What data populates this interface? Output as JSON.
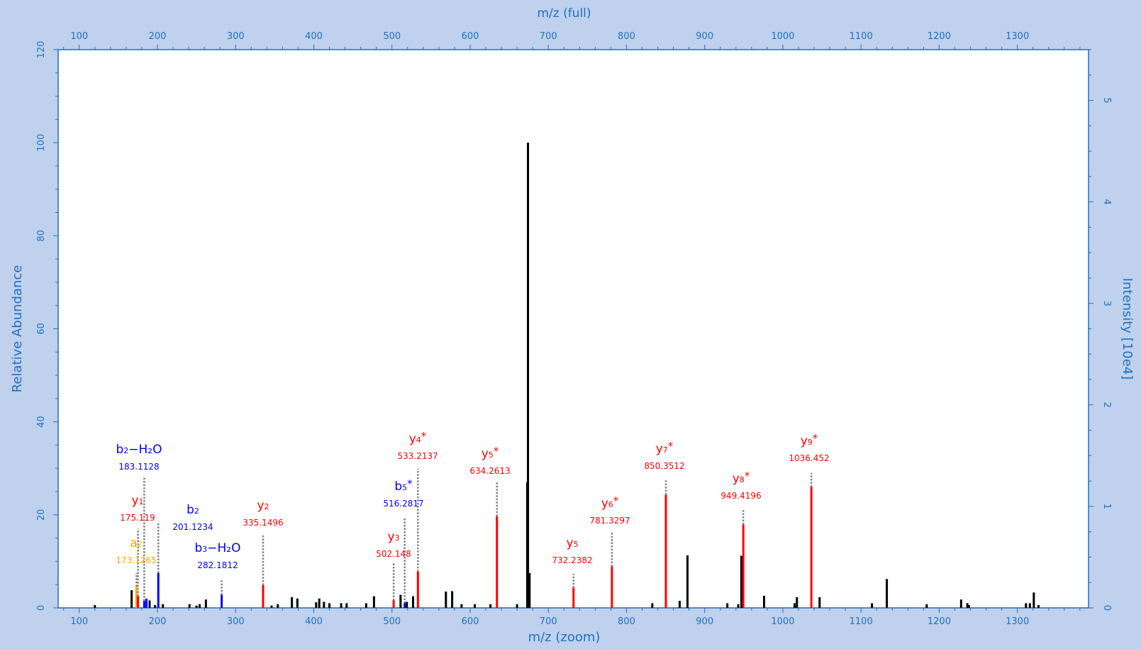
{
  "chart_data": {
    "type": "bar",
    "subtype": "mass-spectrum-stick",
    "title": "",
    "x_axis_top": {
      "label": "m/z (full)",
      "ticks": [
        100,
        200,
        300,
        400,
        500,
        600,
        700,
        800,
        900,
        1000,
        1100,
        1200,
        1300
      ]
    },
    "x_axis_bottom": {
      "label": "m/z (zoom)",
      "ticks": [
        100,
        200,
        300,
        400,
        500,
        600,
        700,
        800,
        900,
        1000,
        1100,
        1200,
        1300
      ]
    },
    "y_axis_left": {
      "label": "Relative Abundance",
      "ticks": [
        0,
        20,
        40,
        60,
        80,
        100,
        120
      ],
      "ylim": [
        0,
        120
      ]
    },
    "y_axis_right": {
      "label": "Intensity [10e4]",
      "ticks": [
        0,
        1,
        2,
        3,
        4,
        5
      ],
      "ylim": [
        0,
        5.5
      ]
    },
    "xlim": [
      73,
      1391
    ],
    "grid": false,
    "colors": {
      "background": "#bfd1ec",
      "plot_bg": "#ffffff",
      "axis": "#1f6fc4",
      "y_ion": "#ff0000",
      "b_ion": "#0000ff",
      "a_ion": "#ffa500",
      "unassigned": "#000000",
      "connector": "#808080"
    },
    "peaks": [
      {
        "mz": 120,
        "rel": 0.6,
        "type": "none"
      },
      {
        "mz": 167,
        "rel": 3.8,
        "type": "none"
      },
      {
        "mz": 173.1265,
        "rel": 4.6,
        "type": "a"
      },
      {
        "mz": 175.119,
        "rel": 2.5,
        "type": "y"
      },
      {
        "mz": 183.1128,
        "rel": 1.5,
        "type": "b"
      },
      {
        "mz": 186,
        "rel": 2.0,
        "type": "b"
      },
      {
        "mz": 190,
        "rel": 1.6,
        "type": "none"
      },
      {
        "mz": 197,
        "rel": 0.6,
        "type": "none"
      },
      {
        "mz": 201.1234,
        "rel": 7.5,
        "type": "b"
      },
      {
        "mz": 207,
        "rel": 0.8,
        "type": "none"
      },
      {
        "mz": 241,
        "rel": 0.8,
        "type": "none"
      },
      {
        "mz": 250,
        "rel": 0.5,
        "type": "none"
      },
      {
        "mz": 254,
        "rel": 0.8,
        "type": "none"
      },
      {
        "mz": 262,
        "rel": 1.8,
        "type": "none"
      },
      {
        "mz": 282.1812,
        "rel": 2.8,
        "type": "b"
      },
      {
        "mz": 335.1496,
        "rel": 4.9,
        "type": "y"
      },
      {
        "mz": 346,
        "rel": 0.5,
        "type": "none"
      },
      {
        "mz": 354,
        "rel": 0.8,
        "type": "none"
      },
      {
        "mz": 372,
        "rel": 2.3,
        "type": "none"
      },
      {
        "mz": 379,
        "rel": 2.0,
        "type": "none"
      },
      {
        "mz": 403,
        "rel": 1.2,
        "type": "none"
      },
      {
        "mz": 407,
        "rel": 2.0,
        "type": "none"
      },
      {
        "mz": 413,
        "rel": 1.3,
        "type": "none"
      },
      {
        "mz": 420,
        "rel": 1.0,
        "type": "none"
      },
      {
        "mz": 435,
        "rel": 1.0,
        "type": "none"
      },
      {
        "mz": 442,
        "rel": 1.0,
        "type": "none"
      },
      {
        "mz": 467,
        "rel": 1.0,
        "type": "none"
      },
      {
        "mz": 477,
        "rel": 2.5,
        "type": "none"
      },
      {
        "mz": 502.148,
        "rel": 1.6,
        "type": "y"
      },
      {
        "mz": 511,
        "rel": 2.8,
        "type": "none"
      },
      {
        "mz": 516.2817,
        "rel": 1.0,
        "type": "b"
      },
      {
        "mz": 519,
        "rel": 1.3,
        "type": "none"
      },
      {
        "mz": 527,
        "rel": 2.5,
        "type": "none"
      },
      {
        "mz": 533.2137,
        "rel": 7.8,
        "type": "y"
      },
      {
        "mz": 569,
        "rel": 3.5,
        "type": "none"
      },
      {
        "mz": 577,
        "rel": 3.6,
        "type": "none"
      },
      {
        "mz": 589,
        "rel": 0.8,
        "type": "none"
      },
      {
        "mz": 606,
        "rel": 0.8,
        "type": "none"
      },
      {
        "mz": 626,
        "rel": 0.8,
        "type": "none"
      },
      {
        "mz": 634.2613,
        "rel": 19.7,
        "type": "y"
      },
      {
        "mz": 660,
        "rel": 0.8,
        "type": "none"
      },
      {
        "mz": 673,
        "rel": 27,
        "type": "none"
      },
      {
        "mz": 674,
        "rel": 100,
        "type": "none"
      },
      {
        "mz": 676,
        "rel": 7.5,
        "type": "none"
      },
      {
        "mz": 732.2382,
        "rel": 4.3,
        "type": "y"
      },
      {
        "mz": 781.3297,
        "rel": 8.9,
        "type": "y"
      },
      {
        "mz": 833,
        "rel": 1.0,
        "type": "none"
      },
      {
        "mz": 850.3512,
        "rel": 24.3,
        "type": "y"
      },
      {
        "mz": 868,
        "rel": 1.5,
        "type": "none"
      },
      {
        "mz": 878,
        "rel": 11.3,
        "type": "none"
      },
      {
        "mz": 929,
        "rel": 1.0,
        "type": "none"
      },
      {
        "mz": 943,
        "rel": 0.8,
        "type": "none"
      },
      {
        "mz": 947,
        "rel": 11.2,
        "type": "none"
      },
      {
        "mz": 949.4196,
        "rel": 17.9,
        "type": "y"
      },
      {
        "mz": 976,
        "rel": 2.6,
        "type": "none"
      },
      {
        "mz": 1015,
        "rel": 1.0,
        "type": "none"
      },
      {
        "mz": 1018,
        "rel": 2.3,
        "type": "none"
      },
      {
        "mz": 1036.452,
        "rel": 26.0,
        "type": "y"
      },
      {
        "mz": 1047,
        "rel": 2.3,
        "type": "none"
      },
      {
        "mz": 1114,
        "rel": 1.0,
        "type": "none"
      },
      {
        "mz": 1133,
        "rel": 6.2,
        "type": "none"
      },
      {
        "mz": 1184,
        "rel": 0.8,
        "type": "none"
      },
      {
        "mz": 1228,
        "rel": 1.8,
        "type": "none"
      },
      {
        "mz": 1236,
        "rel": 1.0,
        "type": "none"
      },
      {
        "mz": 1238,
        "rel": 0.6,
        "type": "none"
      },
      {
        "mz": 1311,
        "rel": 1.0,
        "type": "none"
      },
      {
        "mz": 1316,
        "rel": 1.0,
        "type": "none"
      },
      {
        "mz": 1321,
        "rel": 3.3,
        "type": "none"
      },
      {
        "mz": 1327,
        "rel": 0.6,
        "type": "none"
      }
    ],
    "annotations": [
      {
        "mz": 173.1265,
        "name": "a",
        "sub": "2",
        "star": false,
        "value": "173.1265",
        "type": "a",
        "tip": 7.5
      },
      {
        "mz": 175.119,
        "name": "y",
        "sub": "1",
        "star": false,
        "value": "175.119",
        "type": "y",
        "tip": 17
      },
      {
        "mz": 183.1128,
        "name": "b",
        "sub": "2",
        "star": false,
        "suffix": "−H₂O",
        "value": "183.1128",
        "type": "b",
        "tip": 28
      },
      {
        "mz": 201.1234,
        "name": "b",
        "sub": "2",
        "star": false,
        "value": "201.1234",
        "type": "b",
        "tip": 18.5
      },
      {
        "mz": 282.1812,
        "name": "b",
        "sub": "3",
        "star": false,
        "suffix": "−H₂O",
        "value": "282.1812",
        "type": "b",
        "tip": 6.2
      },
      {
        "mz": 335.1496,
        "name": "y",
        "sub": "2",
        "star": false,
        "value": "335.1496",
        "type": "y",
        "tip": 15.8
      },
      {
        "mz": 502.148,
        "name": "y",
        "sub": "3",
        "star": false,
        "value": "502.148",
        "type": "y",
        "tip": 9.6
      },
      {
        "mz": 516.2817,
        "name": "b",
        "sub": "5",
        "star": true,
        "value": "516.2817",
        "type": "b",
        "tip": 19.4
      },
      {
        "mz": 533.2137,
        "name": "y",
        "sub": "4",
        "star": true,
        "value": "533.2137",
        "type": "y",
        "tip": 29.9
      },
      {
        "mz": 634.2613,
        "name": "y",
        "sub": "5",
        "star": true,
        "value": "634.2613",
        "type": "y",
        "tip": 27
      },
      {
        "mz": 732.2382,
        "name": "y",
        "sub": "5",
        "star": false,
        "value": "732.2382",
        "type": "y",
        "tip": 7.3
      },
      {
        "mz": 781.3297,
        "name": "y",
        "sub": "6",
        "star": true,
        "value": "781.3297",
        "type": "y",
        "tip": 16.3
      },
      {
        "mz": 850.3512,
        "name": "y",
        "sub": "7",
        "star": true,
        "value": "850.3512",
        "type": "y",
        "tip": 27.4
      },
      {
        "mz": 949.4196,
        "name": "y",
        "sub": "8",
        "star": true,
        "value": "949.4196",
        "type": "y",
        "tip": 21.0
      },
      {
        "mz": 1036.452,
        "name": "y",
        "sub": "9",
        "star": true,
        "value": "1036.452",
        "type": "y",
        "tip": 29.0
      }
    ]
  }
}
